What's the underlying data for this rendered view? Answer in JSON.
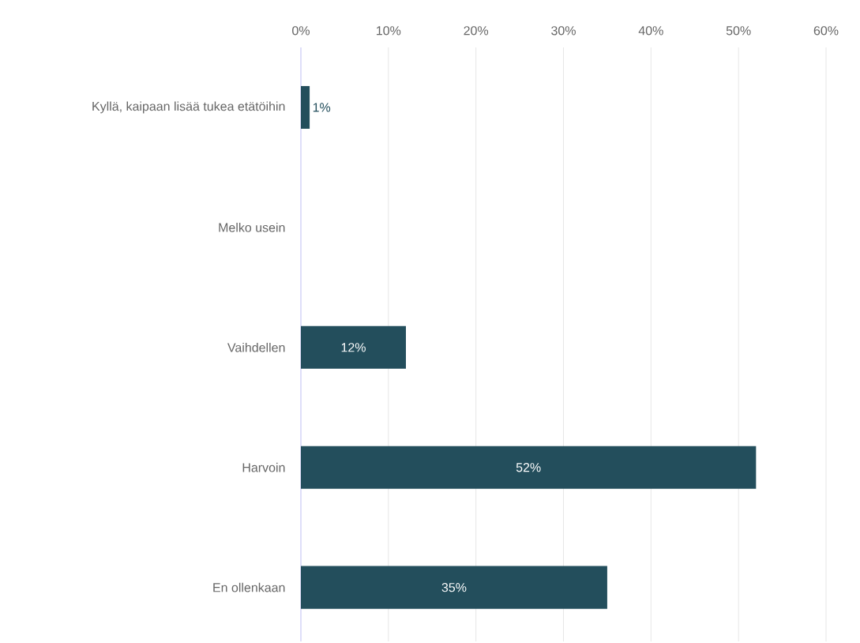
{
  "chart_data": {
    "type": "bar",
    "orientation": "horizontal",
    "categories": [
      "Kyllä, kaipaan lisää tukea etätöihin",
      "Melko usein",
      "Vaihdellen",
      "Harvoin",
      "En ollenkaan"
    ],
    "values": [
      1,
      0,
      12,
      52,
      35
    ],
    "value_labels": [
      "1%",
      null,
      "12%",
      "52%",
      "35%"
    ],
    "color": "#234e5c",
    "xlim": [
      0,
      60
    ],
    "xticks": [
      {
        "value": 0,
        "label": "0%"
      },
      {
        "value": 10,
        "label": "10%"
      },
      {
        "value": 20,
        "label": "20%"
      },
      {
        "value": 30,
        "label": "30%"
      },
      {
        "value": 40,
        "label": "40%"
      },
      {
        "value": 50,
        "label": "50%"
      },
      {
        "value": 60,
        "label": "60%"
      }
    ],
    "grid": "x"
  }
}
